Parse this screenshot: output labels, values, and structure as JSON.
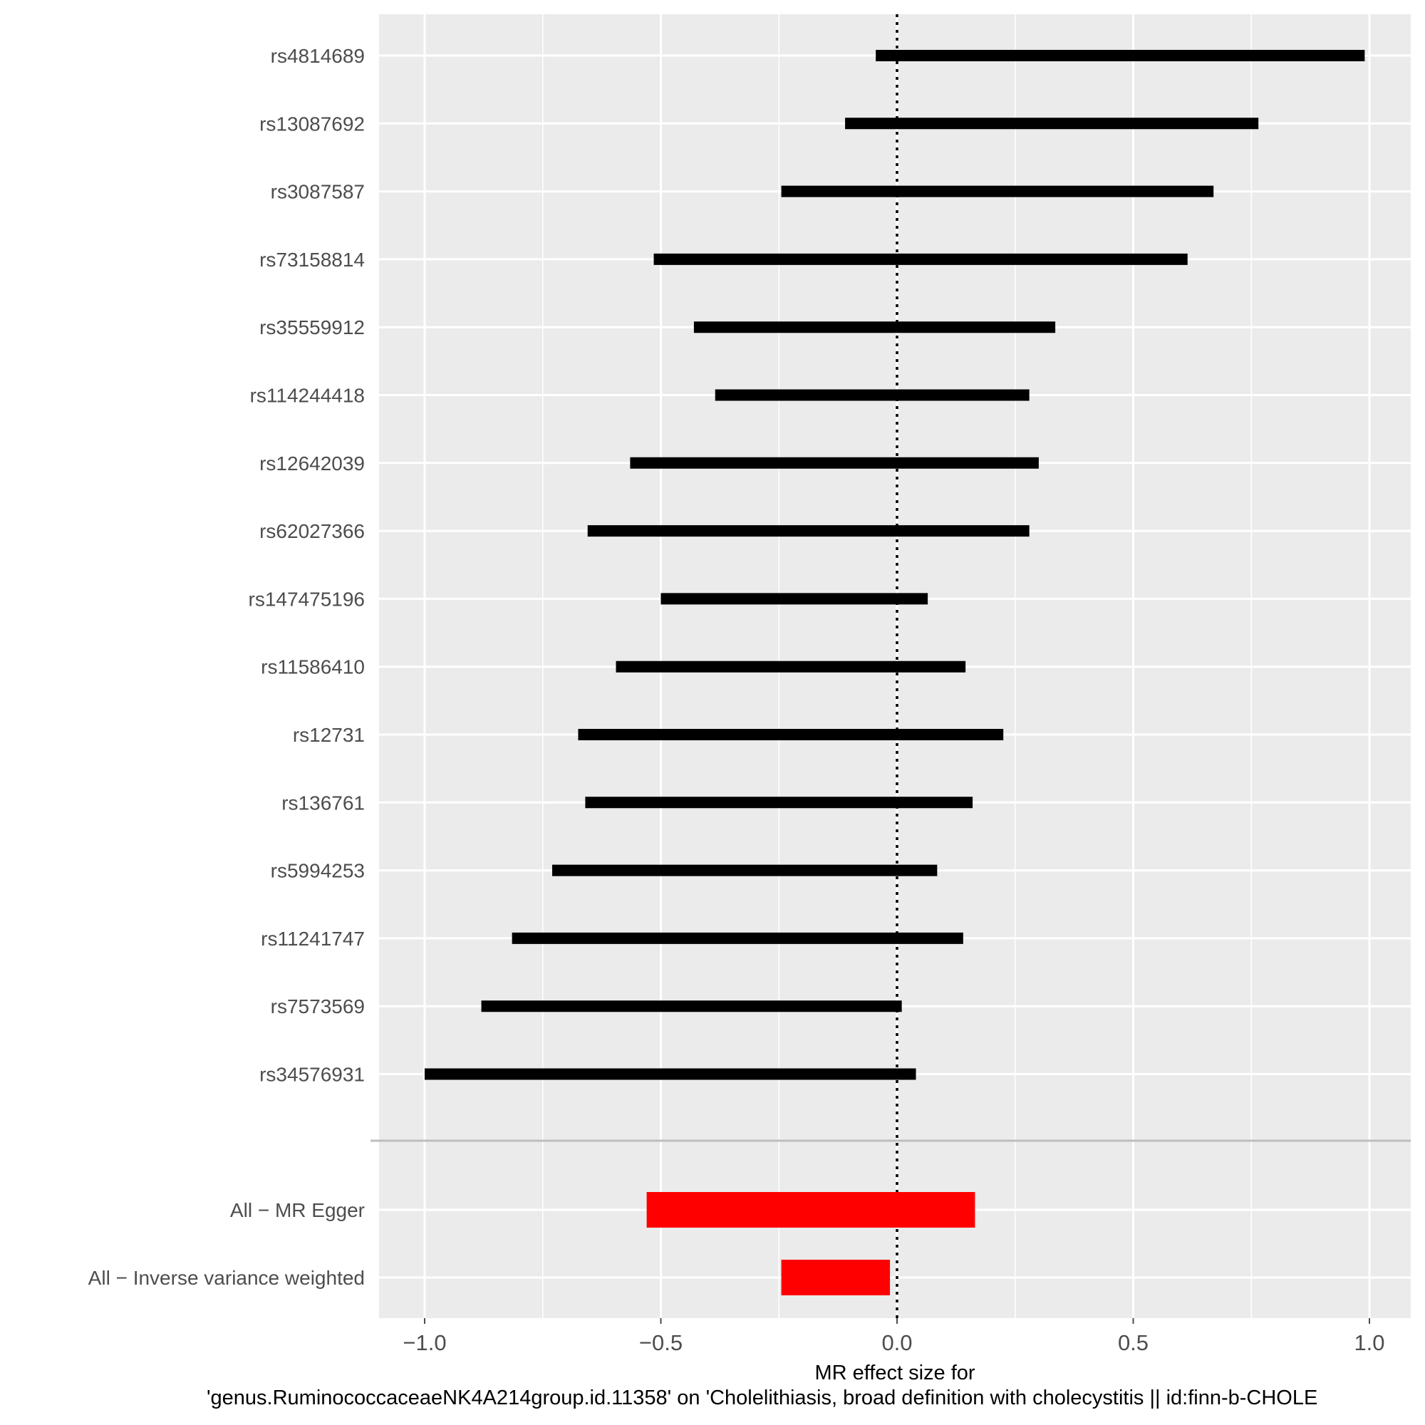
{
  "chart_data": {
    "type": "forest",
    "xlabel_line1": "MR effect size for",
    "xlabel_line2": "'genus.RuminococcaceaeNK4A214group.id.11358' on 'Cholelithiasis, broad definition with cholecystitis || id:finn-b-CHOLE",
    "xlim": [
      -1.1,
      1.1
    ],
    "xticks": [
      -1.0,
      -0.5,
      0.0,
      0.5,
      1.0
    ],
    "xtick_labels": [
      "−1.0",
      "−0.5",
      "0.0",
      "0.5",
      "1.0"
    ],
    "reference_line": 0.0,
    "grid": true,
    "colors": {
      "snp": "#000000",
      "summary": "#ff0000",
      "panel": "#ebebeb",
      "gridline": "#ffffff",
      "separator": "#bdbdbd"
    },
    "snps": [
      {
        "label": "rs4814689",
        "beta": 0.475,
        "lo": -0.045,
        "hi": 0.99
      },
      {
        "label": "rs13087692",
        "beta": 0.33,
        "lo": -0.11,
        "hi": 0.765
      },
      {
        "label": "rs3087587",
        "beta": 0.215,
        "lo": -0.245,
        "hi": 0.67
      },
      {
        "label": "rs73158814",
        "beta": 0.05,
        "lo": -0.515,
        "hi": 0.615
      },
      {
        "label": "rs35559912",
        "beta": -0.05,
        "lo": -0.43,
        "hi": 0.335
      },
      {
        "label": "rs114244418",
        "beta": -0.055,
        "lo": -0.385,
        "hi": 0.28
      },
      {
        "label": "rs12642039",
        "beta": -0.13,
        "lo": -0.565,
        "hi": 0.3
      },
      {
        "label": "rs62027366",
        "beta": -0.19,
        "lo": -0.655,
        "hi": 0.28
      },
      {
        "label": "rs147475196",
        "beta": -0.22,
        "lo": -0.5,
        "hi": 0.065
      },
      {
        "label": "rs11586410",
        "beta": -0.225,
        "lo": -0.595,
        "hi": 0.145
      },
      {
        "label": "rs12731",
        "beta": -0.23,
        "lo": -0.675,
        "hi": 0.225
      },
      {
        "label": "rs136761",
        "beta": -0.255,
        "lo": -0.66,
        "hi": 0.16
      },
      {
        "label": "rs5994253",
        "beta": -0.32,
        "lo": -0.73,
        "hi": 0.085
      },
      {
        "label": "rs11241747",
        "beta": -0.34,
        "lo": -0.815,
        "hi": 0.14
      },
      {
        "label": "rs7573569",
        "beta": -0.44,
        "lo": -0.88,
        "hi": 0.01
      },
      {
        "label": "rs34576931",
        "beta": -0.48,
        "lo": -1.0,
        "hi": 0.04
      }
    ],
    "summaries": [
      {
        "label": "All − MR Egger",
        "beta": -0.18,
        "lo": -0.53,
        "hi": 0.165
      },
      {
        "label": "All − Inverse variance weighted",
        "beta": -0.13,
        "lo": -0.245,
        "hi": -0.015
      }
    ]
  }
}
